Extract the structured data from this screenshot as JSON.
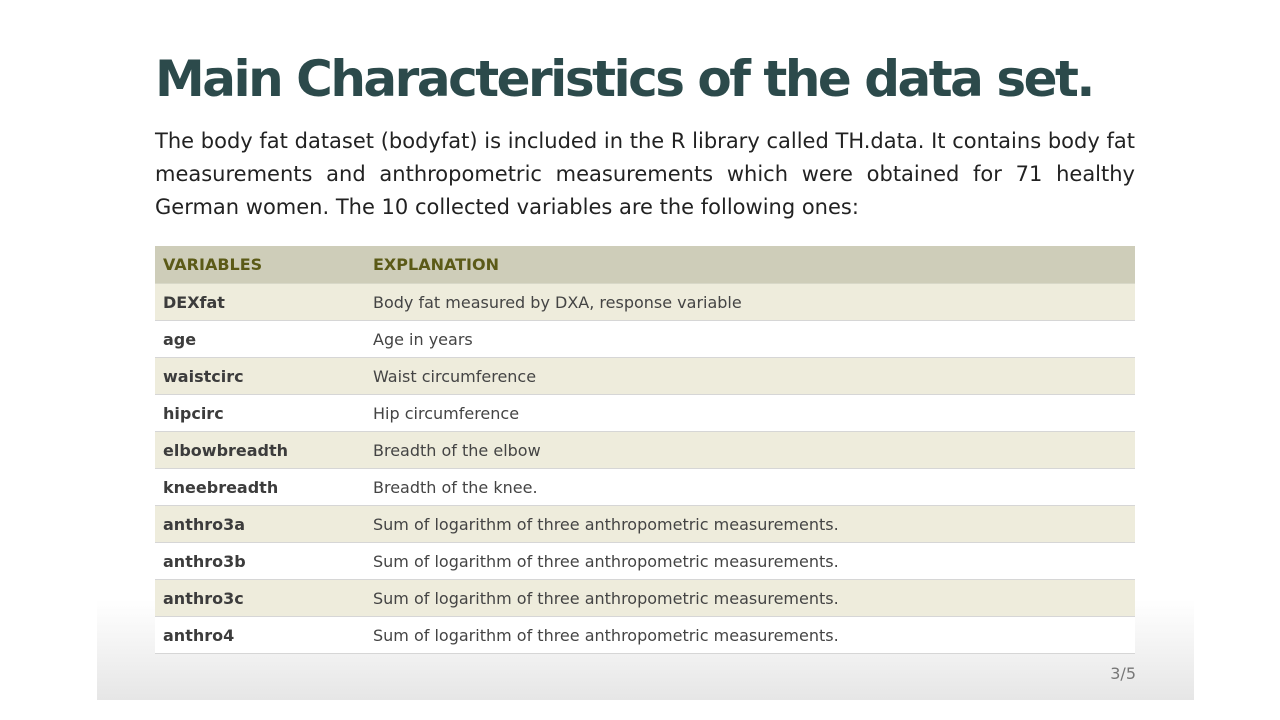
{
  "slide": {
    "title": "Main Characteristics of the data set.",
    "intro": "The body fat dataset (bodyfat) is included in the R library called TH.data. It contains body fat measurements and anthropometric measurements which were obtained for 71 healthy German women. The 10 collected variables are the following ones:",
    "table": {
      "headers": [
        "VARIABLES",
        "EXPLANATION"
      ],
      "rows": [
        {
          "variable": "DEXfat",
          "explanation": "Body fat measured by DXA, response variable"
        },
        {
          "variable": "age",
          "explanation": "Age in years"
        },
        {
          "variable": "waistcirc",
          "explanation": "Waist circumference"
        },
        {
          "variable": "hipcirc",
          "explanation": "Hip circumference"
        },
        {
          "variable": "elbowbreadth",
          "explanation": "Breadth of the elbow"
        },
        {
          "variable": "kneebreadth",
          "explanation": "Breadth of the knee."
        },
        {
          "variable": "anthro3a",
          "explanation": "Sum of logarithm of three anthropometric measurements."
        },
        {
          "variable": "anthro3b",
          "explanation": "Sum of logarithm of three anthropometric measurements."
        },
        {
          "variable": "anthro3c",
          "explanation": "Sum of logarithm of three anthropometric measurements."
        },
        {
          "variable": "anthro4",
          "explanation": "Sum of logarithm of three anthropometric measurements."
        }
      ]
    },
    "page_number": "3/5"
  },
  "colors": {
    "title": "#2c4a4b",
    "header_bg": "#cecdb9",
    "header_text": "#5b5a17",
    "odd_row_bg": "#eeecdc"
  }
}
